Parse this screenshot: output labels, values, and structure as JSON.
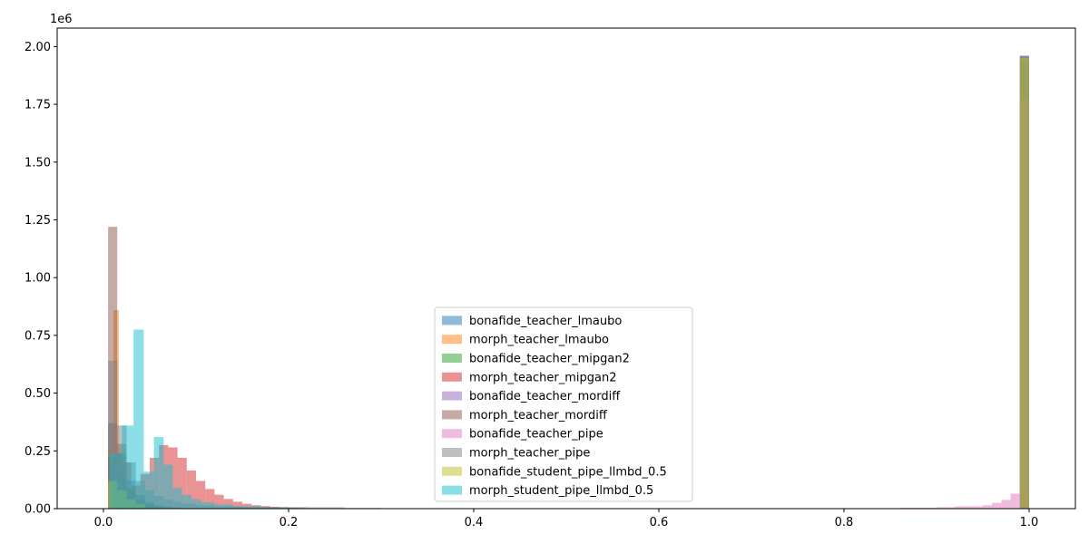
{
  "chart_data": {
    "type": "bar",
    "subtype": "overlaid-histogram",
    "title": "",
    "xlabel": "",
    "ylabel": "",
    "y_scale_label": "1e6",
    "xlim": [
      -0.05,
      1.05
    ],
    "ylim": [
      0,
      2.08
    ],
    "y_unit_multiplier": 1000000,
    "x_ticks": [
      {
        "value": 0.0,
        "label": "0.0"
      },
      {
        "value": 0.2,
        "label": "0.2"
      },
      {
        "value": 0.4,
        "label": "0.4"
      },
      {
        "value": 0.6,
        "label": "0.6"
      },
      {
        "value": 0.8,
        "label": "0.8"
      },
      {
        "value": 1.0,
        "label": "1.0"
      }
    ],
    "y_ticks": [
      {
        "value": 0.0,
        "label": "0.00"
      },
      {
        "value": 0.25,
        "label": "0.25"
      },
      {
        "value": 0.5,
        "label": "0.50"
      },
      {
        "value": 0.75,
        "label": "0.75"
      },
      {
        "value": 1.0,
        "label": "1.00"
      },
      {
        "value": 1.25,
        "label": "1.25"
      },
      {
        "value": 1.5,
        "label": "1.50"
      },
      {
        "value": 1.75,
        "label": "1.75"
      },
      {
        "value": 2.0,
        "label": "2.00"
      }
    ],
    "grid": false,
    "legend_position": "lower-center",
    "opacity": 0.5,
    "series": [
      {
        "name": "bonafide_teacher_lmaubo",
        "color": "#1f77b4",
        "bins": [
          {
            "x0": 0.005,
            "x1": 0.0149,
            "y": 0.37
          },
          {
            "x0": 0.0149,
            "x1": 0.0248,
            "y": 0.23
          },
          {
            "x0": 0.0248,
            "x1": 0.0347,
            "y": 0.12
          },
          {
            "x0": 0.0347,
            "x1": 0.0446,
            "y": 0.06
          },
          {
            "x0": 0.0446,
            "x1": 0.0545,
            "y": 0.03
          },
          {
            "x0": 0.0545,
            "x1": 0.0644,
            "y": 0.015
          },
          {
            "x0": 0.0644,
            "x1": 0.0743,
            "y": 0.008
          },
          {
            "x0": 0.0743,
            "x1": 0.0842,
            "y": 0.004
          },
          {
            "x0": 0.99,
            "x1": 1.0,
            "y": 1.96
          }
        ]
      },
      {
        "name": "morph_teacher_lmaubo",
        "color": "#ff7f0e",
        "bins": [
          {
            "x0": 0.005,
            "x1": 0.0108,
            "y": 0.26
          },
          {
            "x0": 0.0108,
            "x1": 0.0166,
            "y": 0.86
          },
          {
            "x0": 0.0166,
            "x1": 0.0224,
            "y": 0.24
          },
          {
            "x0": 0.0224,
            "x1": 0.0282,
            "y": 0.09
          },
          {
            "x0": 0.0282,
            "x1": 0.034,
            "y": 0.04
          },
          {
            "x0": 0.034,
            "x1": 0.0398,
            "y": 0.02
          },
          {
            "x0": 0.0398,
            "x1": 0.0456,
            "y": 0.01
          },
          {
            "x0": 0.0456,
            "x1": 0.0514,
            "y": 0.006
          },
          {
            "x0": 0.0514,
            "x1": 0.0572,
            "y": 0.003
          }
        ]
      },
      {
        "name": "bonafide_teacher_mipgan2",
        "color": "#2ca02c",
        "bins": [
          {
            "x0": 0.005,
            "x1": 0.0149,
            "y": 0.22
          },
          {
            "x0": 0.0149,
            "x1": 0.0248,
            "y": 0.15
          },
          {
            "x0": 0.0248,
            "x1": 0.0347,
            "y": 0.08
          },
          {
            "x0": 0.0347,
            "x1": 0.0446,
            "y": 0.04
          },
          {
            "x0": 0.0446,
            "x1": 0.0545,
            "y": 0.02
          },
          {
            "x0": 0.0545,
            "x1": 0.0644,
            "y": 0.01
          },
          {
            "x0": 0.99,
            "x1": 1.0,
            "y": 1.94
          }
        ]
      },
      {
        "name": "morph_teacher_mipgan2",
        "color": "#d62728",
        "bins": [
          {
            "x0": 0.01,
            "x1": 0.02,
            "y": 0.24
          },
          {
            "x0": 0.02,
            "x1": 0.03,
            "y": 0.2
          },
          {
            "x0": 0.03,
            "x1": 0.04,
            "y": 0.1
          },
          {
            "x0": 0.04,
            "x1": 0.05,
            "y": 0.15
          },
          {
            "x0": 0.05,
            "x1": 0.06,
            "y": 0.22
          },
          {
            "x0": 0.06,
            "x1": 0.07,
            "y": 0.275
          },
          {
            "x0": 0.07,
            "x1": 0.08,
            "y": 0.265
          },
          {
            "x0": 0.08,
            "x1": 0.09,
            "y": 0.22
          },
          {
            "x0": 0.09,
            "x1": 0.1,
            "y": 0.165
          },
          {
            "x0": 0.1,
            "x1": 0.11,
            "y": 0.12
          },
          {
            "x0": 0.11,
            "x1": 0.12,
            "y": 0.085
          },
          {
            "x0": 0.12,
            "x1": 0.13,
            "y": 0.06
          },
          {
            "x0": 0.13,
            "x1": 0.14,
            "y": 0.042
          },
          {
            "x0": 0.14,
            "x1": 0.15,
            "y": 0.03
          },
          {
            "x0": 0.15,
            "x1": 0.16,
            "y": 0.021
          },
          {
            "x0": 0.16,
            "x1": 0.17,
            "y": 0.015
          },
          {
            "x0": 0.17,
            "x1": 0.18,
            "y": 0.011
          },
          {
            "x0": 0.18,
            "x1": 0.19,
            "y": 0.008
          },
          {
            "x0": 0.19,
            "x1": 0.2,
            "y": 0.006
          },
          {
            "x0": 0.2,
            "x1": 0.21,
            "y": 0.004
          },
          {
            "x0": 0.21,
            "x1": 0.22,
            "y": 0.003
          },
          {
            "x0": 0.22,
            "x1": 0.23,
            "y": 0.002
          },
          {
            "x0": 0.23,
            "x1": 0.24,
            "y": 0.0015
          }
        ]
      },
      {
        "name": "bonafide_teacher_mordiff",
        "color": "#9467bd",
        "bins": [
          {
            "x0": 0.005,
            "x1": 0.0149,
            "y": 0.2
          },
          {
            "x0": 0.0149,
            "x1": 0.0248,
            "y": 0.12
          },
          {
            "x0": 0.0248,
            "x1": 0.0347,
            "y": 0.06
          },
          {
            "x0": 0.0347,
            "x1": 0.0446,
            "y": 0.03
          },
          {
            "x0": 0.0446,
            "x1": 0.0545,
            "y": 0.015
          },
          {
            "x0": 0.99,
            "x1": 1.0,
            "y": 1.96
          }
        ]
      },
      {
        "name": "morph_teacher_mordiff",
        "color": "#8c564b",
        "bins": [
          {
            "x0": 0.005,
            "x1": 0.0149,
            "y": 1.22
          },
          {
            "x0": 0.0149,
            "x1": 0.0248,
            "y": 0.28
          },
          {
            "x0": 0.0248,
            "x1": 0.0347,
            "y": 0.09
          },
          {
            "x0": 0.0347,
            "x1": 0.0446,
            "y": 0.04
          },
          {
            "x0": 0.0446,
            "x1": 0.0545,
            "y": 0.02
          },
          {
            "x0": 0.0545,
            "x1": 0.0644,
            "y": 0.01
          },
          {
            "x0": 0.0644,
            "x1": 0.0743,
            "y": 0.005
          }
        ]
      },
      {
        "name": "bonafide_teacher_pipe",
        "color": "#e377c2",
        "bins": [
          {
            "x0": 0.6,
            "x1": 0.62,
            "y": 0.002
          },
          {
            "x0": 0.8,
            "x1": 0.86,
            "y": 0.002
          },
          {
            "x0": 0.86,
            "x1": 0.9,
            "y": 0.004
          },
          {
            "x0": 0.9,
            "x1": 0.92,
            "y": 0.006
          },
          {
            "x0": 0.92,
            "x1": 0.95,
            "y": 0.01
          },
          {
            "x0": 0.95,
            "x1": 0.96,
            "y": 0.015
          },
          {
            "x0": 0.96,
            "x1": 0.97,
            "y": 0.025
          },
          {
            "x0": 0.97,
            "x1": 0.98,
            "y": 0.038
          },
          {
            "x0": 0.98,
            "x1": 0.99,
            "y": 0.065
          },
          {
            "x0": 0.99,
            "x1": 1.0,
            "y": 1.77
          }
        ]
      },
      {
        "name": "morph_teacher_pipe",
        "color": "#7f7f7f",
        "bins": [
          {
            "x0": 0.005,
            "x1": 0.015,
            "y": 0.64
          },
          {
            "x0": 0.015,
            "x1": 0.025,
            "y": 0.36
          },
          {
            "x0": 0.025,
            "x1": 0.035,
            "y": 0.2
          },
          {
            "x0": 0.035,
            "x1": 0.045,
            "y": 0.12
          },
          {
            "x0": 0.045,
            "x1": 0.055,
            "y": 0.08
          },
          {
            "x0": 0.055,
            "x1": 0.065,
            "y": 0.055
          },
          {
            "x0": 0.065,
            "x1": 0.075,
            "y": 0.04
          },
          {
            "x0": 0.075,
            "x1": 0.085,
            "y": 0.03
          },
          {
            "x0": 0.085,
            "x1": 0.1,
            "y": 0.022
          },
          {
            "x0": 0.1,
            "x1": 0.12,
            "y": 0.015
          },
          {
            "x0": 0.12,
            "x1": 0.15,
            "y": 0.01
          },
          {
            "x0": 0.15,
            "x1": 0.18,
            "y": 0.008
          },
          {
            "x0": 0.18,
            "x1": 0.22,
            "y": 0.007
          },
          {
            "x0": 0.22,
            "x1": 0.26,
            "y": 0.006
          },
          {
            "x0": 0.26,
            "x1": 0.3,
            "y": 0.003
          },
          {
            "x0": 0.3,
            "x1": 0.36,
            "y": 0.002
          },
          {
            "x0": 0.78,
            "x1": 0.8,
            "y": 0.002
          },
          {
            "x0": 0.99,
            "x1": 1.0,
            "y": 1.96
          }
        ]
      },
      {
        "name": "bonafide_student_pipe_llmbd_0.5",
        "color": "#bcbd22",
        "bins": [
          {
            "x0": 0.005,
            "x1": 0.015,
            "y": 0.12
          },
          {
            "x0": 0.015,
            "x1": 0.025,
            "y": 0.08
          },
          {
            "x0": 0.025,
            "x1": 0.035,
            "y": 0.04
          },
          {
            "x0": 0.035,
            "x1": 0.045,
            "y": 0.02
          },
          {
            "x0": 0.99,
            "x1": 1.0,
            "y": 1.95
          }
        ]
      },
      {
        "name": "morph_student_pipe_llmbd_0.5",
        "color": "#17becf",
        "bins": [
          {
            "x0": 0.007,
            "x1": 0.02,
            "y": 0.24
          },
          {
            "x0": 0.02,
            "x1": 0.0325,
            "y": 0.36
          },
          {
            "x0": 0.0325,
            "x1": 0.0435,
            "y": 0.775
          },
          {
            "x0": 0.0435,
            "x1": 0.0545,
            "y": 0.16
          },
          {
            "x0": 0.0545,
            "x1": 0.065,
            "y": 0.31
          },
          {
            "x0": 0.065,
            "x1": 0.075,
            "y": 0.19
          },
          {
            "x0": 0.075,
            "x1": 0.085,
            "y": 0.09
          },
          {
            "x0": 0.085,
            "x1": 0.095,
            "y": 0.06
          },
          {
            "x0": 0.095,
            "x1": 0.105,
            "y": 0.04
          },
          {
            "x0": 0.105,
            "x1": 0.12,
            "y": 0.028
          },
          {
            "x0": 0.12,
            "x1": 0.14,
            "y": 0.018
          },
          {
            "x0": 0.14,
            "x1": 0.17,
            "y": 0.01
          },
          {
            "x0": 0.17,
            "x1": 0.2,
            "y": 0.005
          }
        ]
      }
    ]
  }
}
